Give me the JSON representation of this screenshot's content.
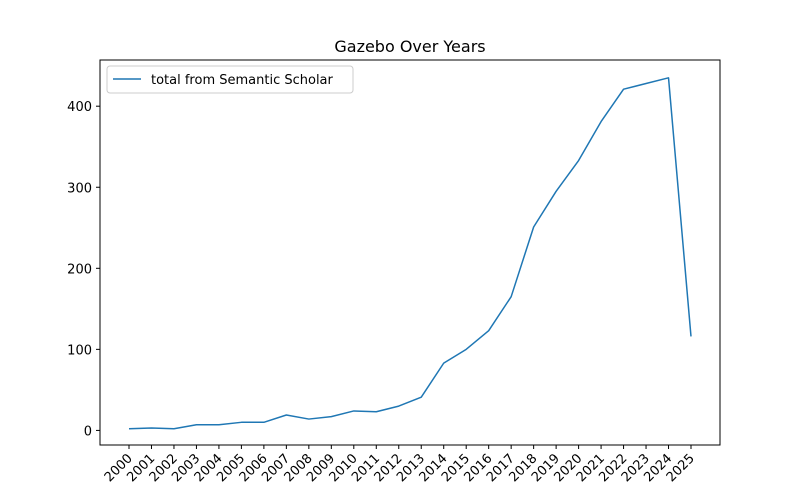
{
  "chart_data": {
    "type": "line",
    "title": "Gazebo Over Years",
    "xlabel": "",
    "ylabel": "",
    "x": [
      "2000",
      "2001",
      "2002",
      "2003",
      "2004",
      "2005",
      "2006",
      "2007",
      "2008",
      "2009",
      "2010",
      "2011",
      "2012",
      "2013",
      "2014",
      "2015",
      "2016",
      "2017",
      "2018",
      "2019",
      "2020",
      "2021",
      "2022",
      "2023",
      "2024",
      "2025"
    ],
    "series": [
      {
        "name": "total from Semantic Scholar",
        "color": "#1f77b4",
        "values": [
          2,
          3,
          2,
          7,
          7,
          10,
          10,
          19,
          14,
          17,
          24,
          23,
          30,
          41,
          83,
          100,
          123,
          165,
          251,
          295,
          333,
          381,
          421,
          428,
          435,
          116
        ]
      }
    ],
    "ylim": [
      -18,
      457
    ],
    "yticks": [
      0,
      100,
      200,
      300,
      400
    ],
    "grid": false,
    "legend_position": "upper-left"
  }
}
